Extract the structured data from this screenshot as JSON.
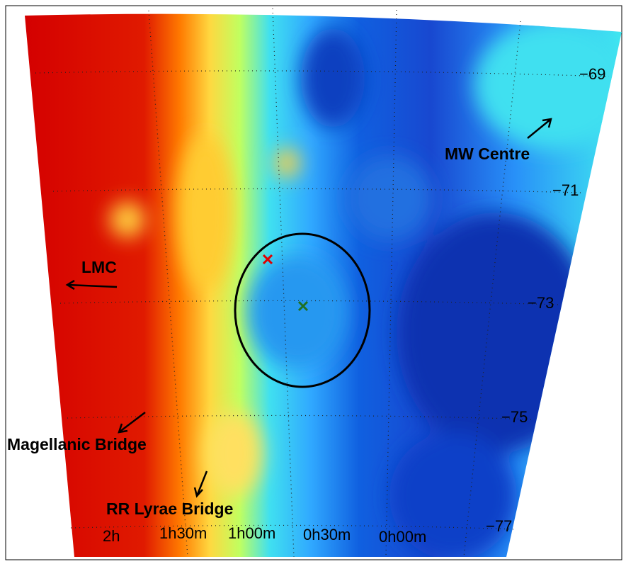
{
  "annotations": [
    "MW Centre",
    "LMC",
    "Magellanic Bridge",
    "RR Lyrae Bridge"
  ],
  "dec_labels": [
    "−69",
    "−71",
    "−73",
    "−75",
    "−77"
  ],
  "ra_labels": [
    "2h",
    "1h30m",
    "1h00m",
    "0h30m",
    "0h00m"
  ]
}
